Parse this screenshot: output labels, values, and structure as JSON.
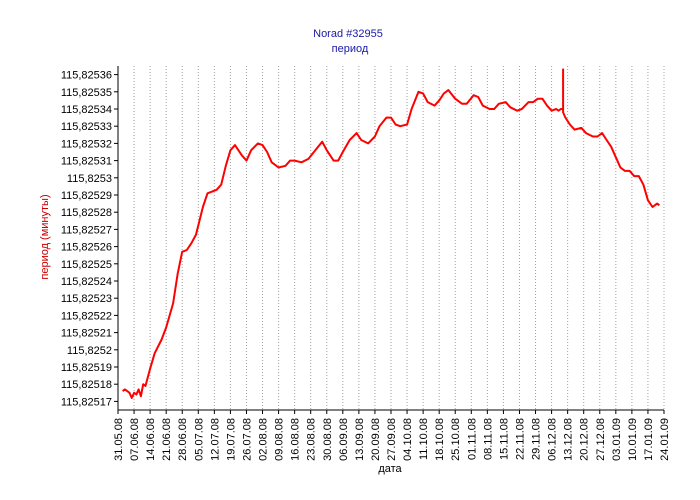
{
  "chart_data": {
    "type": "line",
    "title": "Norad #32955",
    "subtitle": "период",
    "xlabel": "дата",
    "ylabel": "период (минуты)",
    "grid": true,
    "colors": {
      "line": "#ff0000",
      "title": "#1a1aa6",
      "ylabel": "#cc0000",
      "grid": "#a0a0a0"
    },
    "x_ticks": [
      "31.05.08",
      "07.06.08",
      "14.06.08",
      "21.06.08",
      "28.06.08",
      "05.07.08",
      "12.07.08",
      "19.07.08",
      "26.07.08",
      "02.08.08",
      "09.08.08",
      "16.08.08",
      "23.08.08",
      "30.08.08",
      "06.09.08",
      "13.09.08",
      "20.09.08",
      "27.09.08",
      "04.10.08",
      "11.10.08",
      "18.10.08",
      "25.10.08",
      "01.11.08",
      "08.11.08",
      "15.11.08",
      "22.11.08",
      "29.11.08",
      "06.12.08",
      "13.12.08",
      "20.12.08",
      "27.12.08",
      "03.01.09",
      "10.01.09",
      "17.01.09",
      "24.01.09"
    ],
    "y_ticks": [
      "115,82536",
      "115,82535",
      "115,82534",
      "115,82533",
      "115,82532",
      "115,82531",
      "115,8253",
      "115,82529",
      "115,82528",
      "115,82527",
      "115,82526",
      "115,82525",
      "115,82524",
      "115,82523",
      "115,82522",
      "115,82521",
      "115,8252",
      "115,82519",
      "115,82518",
      "115,82517"
    ],
    "ylim": [
      115.825165,
      115.825365
    ],
    "xlim": [
      "31.05.08",
      "24.01.09"
    ],
    "series": [
      {
        "x": [
          "02.06.08",
          "03.06.08",
          "04.06.08",
          "05.06.08",
          "06.06.08",
          "07.06.08",
          "08.06.08",
          "09.06.08",
          "10.06.08",
          "11.06.08",
          "12.06.08",
          "14.06.08",
          "16.06.08",
          "19.06.08",
          "21.06.08",
          "24.06.08",
          "26.06.08",
          "28.06.08",
          "30.06.08",
          "02.07.08",
          "04.07.08",
          "07.07.08",
          "09.07.08",
          "11.07.08",
          "13.07.08",
          "15.07.08",
          "17.07.08",
          "19.07.08",
          "21.07.08",
          "24.07.08",
          "26.07.08",
          "28.07.08",
          "31.07.08",
          "02.08.08",
          "04.08.08",
          "06.08.08",
          "09.08.08",
          "12.08.08",
          "14.08.08",
          "16.08.08",
          "19.08.08",
          "22.08.08",
          "25.08.08",
          "28.08.08",
          "30.08.08",
          "02.09.08",
          "04.09.08",
          "06.09.08",
          "09.09.08",
          "12.09.08",
          "14.09.08",
          "17.09.08",
          "20.09.08",
          "22.09.08",
          "25.09.08",
          "27.09.08",
          "29.09.08",
          "01.10.08",
          "04.10.08",
          "06.10.08",
          "09.10.08",
          "11.10.08",
          "13.10.08",
          "16.10.08",
          "18.10.08",
          "20.10.08",
          "22.10.08",
          "25.10.08",
          "28.10.08",
          "30.10.08",
          "02.11.08",
          "04.11.08",
          "06.11.08",
          "09.11.08",
          "11.11.08",
          "13.11.08",
          "16.11.08",
          "18.11.08",
          "21.11.08",
          "23.11.08",
          "26.11.08",
          "28.11.08",
          "30.11.08",
          "02.12.08",
          "04.12.08",
          "06.12.08",
          "08.12.08",
          "09.12.08",
          "10.12.08",
          "11.12.08",
          "11.12.08",
          "11.12.08",
          "11.12.08",
          "12.12.08",
          "14.12.08",
          "16.12.08",
          "19.12.08",
          "21.12.08",
          "24.12.08",
          "26.12.08",
          "28.12.08",
          "30.12.08",
          "01.01.09",
          "03.01.09",
          "05.01.09",
          "07.01.09",
          "09.01.09",
          "11.01.09",
          "13.01.09",
          "15.01.09",
          "17.01.09",
          "19.01.09",
          "20.01.09",
          "21.01.09",
          "22.01.09"
        ],
        "y": [
          115.825176,
          115.825177,
          115.825176,
          115.825175,
          115.825172,
          115.825175,
          115.825174,
          115.825177,
          115.825173,
          115.82518,
          115.825179,
          115.825189,
          115.825198,
          115.825206,
          115.825213,
          115.825227,
          115.825244,
          115.825257,
          115.825258,
          115.825262,
          115.825267,
          115.825283,
          115.825291,
          115.825292,
          115.825293,
          115.825296,
          115.825307,
          115.825316,
          115.825319,
          115.825313,
          115.82531,
          115.825316,
          115.82532,
          115.825319,
          115.825315,
          115.825309,
          115.825306,
          115.825307,
          115.82531,
          115.82531,
          115.825309,
          115.825311,
          115.825316,
          115.825321,
          115.825316,
          115.82531,
          115.82531,
          115.825315,
          115.825322,
          115.825326,
          115.825322,
          115.82532,
          115.825324,
          115.82533,
          115.825335,
          115.825335,
          115.825331,
          115.82533,
          115.825331,
          115.82534,
          115.82535,
          115.825349,
          115.825344,
          115.825342,
          115.825345,
          115.825349,
          115.825351,
          115.825346,
          115.825343,
          115.825343,
          115.825348,
          115.825347,
          115.825342,
          115.82534,
          115.82534,
          115.825343,
          115.825344,
          115.825341,
          115.825339,
          115.82534,
          115.825344,
          115.825344,
          115.825346,
          115.825346,
          115.825342,
          115.825339,
          115.82534,
          115.825339,
          115.82534,
          115.82534,
          115.825363,
          115.82534,
          115.825338,
          115.825335,
          115.825331,
          115.825328,
          115.825329,
          115.825326,
          115.825324,
          115.825324,
          115.825326,
          115.825322,
          115.825318,
          115.825312,
          115.825306,
          115.825304,
          115.825304,
          115.825301,
          115.825301,
          115.825296,
          115.825287,
          115.825283,
          115.825284,
          115.825285,
          115.825284
        ]
      }
    ]
  }
}
